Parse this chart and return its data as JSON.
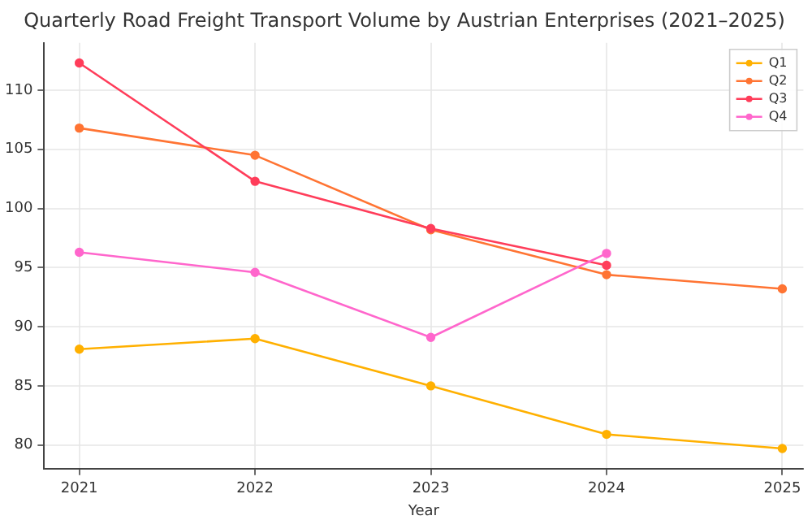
{
  "chart_data": {
    "type": "line",
    "title": "Quarterly Road Freight Transport Volume by Austrian Enterprises (2021–2025)",
    "xlabel": "Year",
    "x": [
      2021,
      2022,
      2023,
      2024,
      2025
    ],
    "series": [
      {
        "name": "Q1",
        "color": "#ffb000",
        "values": [
          88.1,
          89.0,
          85.0,
          80.9,
          79.7
        ]
      },
      {
        "name": "Q2",
        "color": "#ff7433",
        "values": [
          106.8,
          104.5,
          98.2,
          94.4,
          93.2
        ]
      },
      {
        "name": "Q3",
        "color": "#ff3d5a",
        "values": [
          112.3,
          102.3,
          98.3,
          95.2,
          null
        ]
      },
      {
        "name": "Q4",
        "color": "#ff66cc",
        "values": [
          96.3,
          94.6,
          89.1,
          96.2,
          null
        ]
      }
    ],
    "xlim": [
      2020.8,
      2025.12
    ],
    "xticks": [
      2021,
      2022,
      2023,
      2024,
      2025
    ],
    "ylim": [
      78,
      114
    ],
    "yticks": [
      80,
      85,
      90,
      95,
      100,
      105,
      110
    ],
    "grid": true,
    "legend": "top right",
    "marker": "circle",
    "line_style": "solid"
  }
}
